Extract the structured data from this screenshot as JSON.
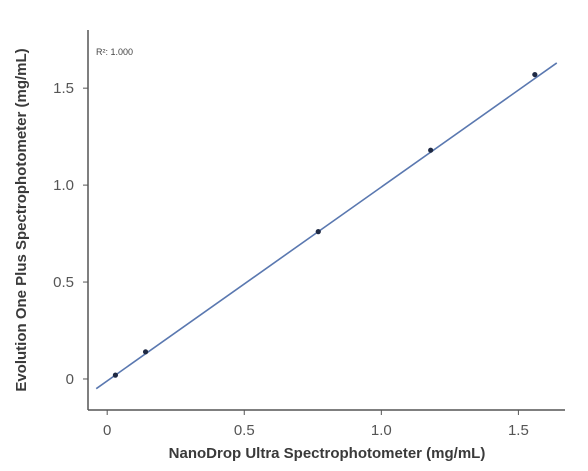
{
  "chart_data": {
    "type": "scatter",
    "xlabel": "NanoDrop Ultra Spectrophotometer (mg/mL)",
    "ylabel": "Evolution One Plus Spectrophotometer (mg/mL)",
    "annotation": "R²: 1.000",
    "x_ticks": [
      "0",
      "0.5",
      "1.0",
      "1.5"
    ],
    "y_ticks": [
      "0",
      "0.5",
      "1.0",
      "1.5"
    ],
    "xlim": [
      -0.07,
      1.67
    ],
    "ylim": [
      -0.16,
      1.8
    ],
    "grid": false,
    "legend": "none",
    "series": [
      {
        "x": [
          0.03,
          0.14,
          0.77,
          1.18,
          1.56
        ],
        "y": [
          0.02,
          0.14,
          0.76,
          1.18,
          1.57
        ]
      }
    ],
    "fit_line": {
      "x": [
        -0.04,
        1.64
      ],
      "y": [
        -0.05,
        1.63
      ]
    },
    "colors": {
      "line": "#5a78b0",
      "point": "#1f2a44",
      "axis": "#555555"
    }
  }
}
